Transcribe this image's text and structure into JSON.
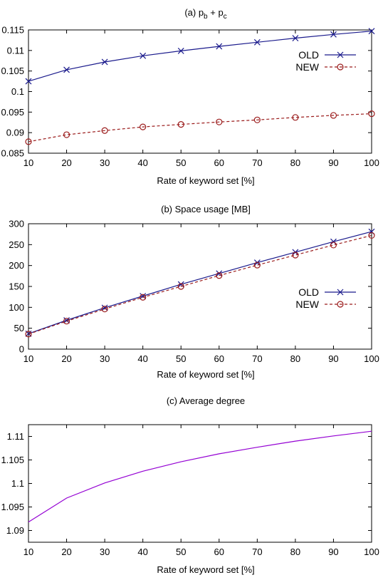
{
  "chart_data": [
    {
      "type": "line",
      "title": "(a) p_b + p_c",
      "title_parts": {
        "prefix": "(a) ",
        "p1": "p",
        "s1": "b",
        "plus": " + ",
        "p2": "p",
        "s2": "c"
      },
      "xlabel": "Rate of keyword set [%]",
      "ylabel": "",
      "x": [
        10,
        20,
        30,
        40,
        50,
        60,
        70,
        80,
        90,
        100
      ],
      "xlim": [
        10,
        100
      ],
      "ylim": [
        0.085,
        0.115
      ],
      "xticks": [
        10,
        20,
        30,
        40,
        50,
        60,
        70,
        80,
        90,
        100
      ],
      "yticks": [
        0.085,
        0.09,
        0.095,
        0.1,
        0.105,
        0.11,
        0.115
      ],
      "ytick_labels": [
        "0.085",
        "0.09",
        "0.095",
        "0.1",
        "0.105",
        "0.11",
        "0.115"
      ],
      "legend_position": "right",
      "series": [
        {
          "name": "OLD",
          "color": "#1a1a8c",
          "marker": "x",
          "dash": "solid",
          "values": [
            0.1025,
            0.1053,
            0.1072,
            0.1087,
            0.1099,
            0.111,
            0.112,
            0.113,
            0.1139,
            0.1147
          ]
        },
        {
          "name": "NEW",
          "color": "#9b1c1c",
          "marker": "o",
          "dash": "dashed",
          "values": [
            0.0878,
            0.0895,
            0.0905,
            0.0914,
            0.092,
            0.0926,
            0.0931,
            0.0937,
            0.0942,
            0.0946
          ]
        }
      ]
    },
    {
      "type": "line",
      "title": "(b) Space usage [MB]",
      "xlabel": "Rate of keyword set [%]",
      "ylabel": "",
      "x": [
        10,
        20,
        30,
        40,
        50,
        60,
        70,
        80,
        90,
        100
      ],
      "xlim": [
        10,
        100
      ],
      "ylim": [
        0,
        300
      ],
      "xticks": [
        10,
        20,
        30,
        40,
        50,
        60,
        70,
        80,
        90,
        100
      ],
      "yticks": [
        0,
        50,
        100,
        150,
        200,
        250,
        300
      ],
      "ytick_labels": [
        "0",
        "50",
        "100",
        "150",
        "200",
        "250",
        "300"
      ],
      "legend_position": "right",
      "series": [
        {
          "name": "OLD",
          "color": "#1a1a8c",
          "marker": "x",
          "dash": "solid",
          "values": [
            37,
            69,
            99,
            127,
            155,
            181,
            207,
            232,
            257,
            281
          ]
        },
        {
          "name": "NEW",
          "color": "#9b1c1c",
          "marker": "o",
          "dash": "dashed",
          "values": [
            36,
            67,
            96,
            124,
            150,
            176,
            201,
            225,
            249,
            272
          ]
        }
      ]
    },
    {
      "type": "line",
      "title": "(c) Average degree",
      "xlabel": "Rate of keyword set [%]",
      "ylabel": "",
      "x": [
        10,
        20,
        30,
        40,
        50,
        60,
        70,
        80,
        90,
        100
      ],
      "xlim": [
        10,
        100
      ],
      "ylim": [
        1.0875,
        1.1125
      ],
      "xticks": [
        10,
        20,
        30,
        40,
        50,
        60,
        70,
        80,
        90,
        100
      ],
      "yticks": [
        1.09,
        1.095,
        1.1,
        1.105,
        1.11
      ],
      "ytick_labels": [
        "1.09",
        "1.095",
        "1.1",
        "1.105",
        "1.11"
      ],
      "series": [
        {
          "color": "#9400d3",
          "marker": "none",
          "dash": "solid",
          "values": [
            1.0918,
            1.0969,
            1.1001,
            1.1026,
            1.1046,
            1.1063,
            1.1077,
            1.109,
            1.1101,
            1.1111
          ]
        }
      ]
    }
  ]
}
